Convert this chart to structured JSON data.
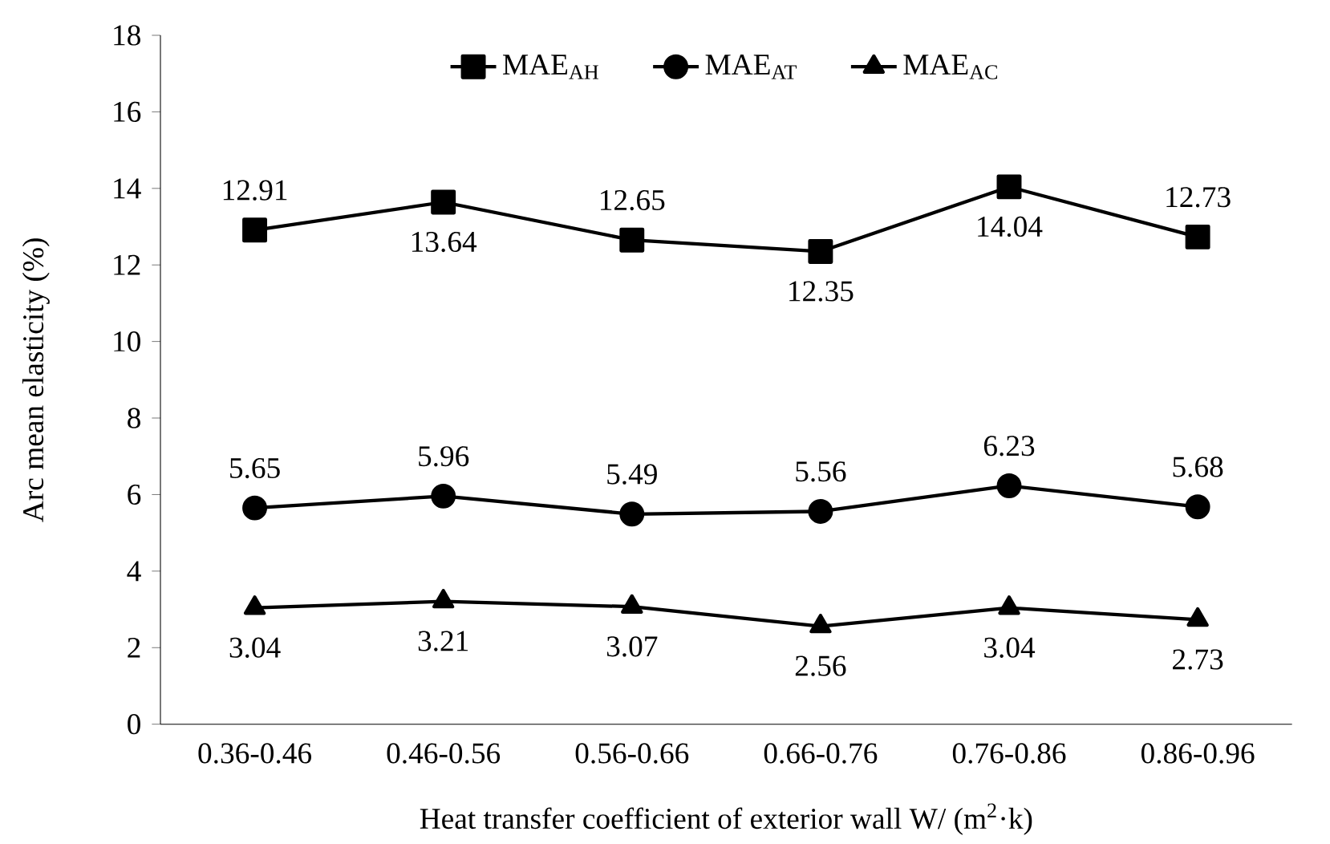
{
  "chart_data": {
    "type": "line",
    "xlabel": "Heat transfer coefficient of exterior wall W/ (m$^{2}$·k)",
    "ylabel": "Arc mean elasticity (%)",
    "categories": [
      "0.36-0.46",
      "0.46-0.56",
      "0.56-0.66",
      "0.66-0.76",
      "0.76-0.86",
      "0.86-0.96"
    ],
    "series": [
      {
        "name": "MAE$_{AH}$",
        "color": "#000000",
        "marker": "square",
        "values": [
          12.91,
          13.64,
          12.65,
          12.35,
          14.04,
          12.73
        ]
      },
      {
        "name": "MAE$_{AT}$",
        "color": "#000000",
        "marker": "circle",
        "values": [
          5.65,
          5.96,
          5.49,
          5.56,
          6.23,
          5.68
        ]
      },
      {
        "name": "MAE$_{AC}$",
        "color": "#000000",
        "marker": "triangle",
        "values": [
          3.04,
          3.21,
          3.07,
          2.56,
          3.04,
          2.73
        ]
      }
    ],
    "ylim": [
      0,
      18
    ],
    "yticks": [
      0,
      2,
      4,
      6,
      8,
      10,
      12,
      14,
      16,
      18
    ],
    "grid": false,
    "legend": "top",
    "line_style": "solid",
    "data_labels": true
  }
}
